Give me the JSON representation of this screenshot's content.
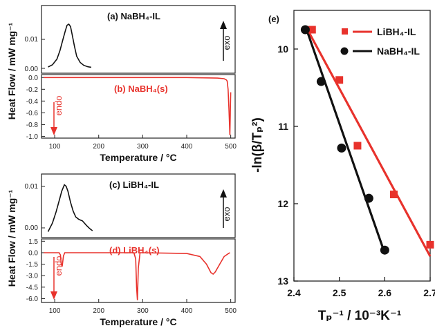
{
  "chart_data": [
    {
      "panel": "a",
      "type": "line",
      "title": "(a) NaBH₄-IL",
      "ylabel": "Heat Flow / mW mg⁻¹",
      "xlim": [
        70,
        510
      ],
      "ylim": [
        -0.002,
        0.022
      ],
      "yticks": [
        "0.01",
        "0.00"
      ],
      "ytick_values": [
        0.01,
        0.0
      ],
      "annotation": "exo",
      "series": [
        {
          "color": "#111111",
          "x": [
            85,
            95,
            105,
            112,
            118,
            124,
            128,
            132,
            136,
            140,
            145,
            150,
            158,
            166,
            175,
            183
          ],
          "y": [
            0.0002,
            0.001,
            0.003,
            0.006,
            0.0095,
            0.013,
            0.015,
            0.0154,
            0.0145,
            0.0115,
            0.0075,
            0.004,
            0.0018,
            0.0008,
            0.0003,
            0.0001
          ]
        }
      ]
    },
    {
      "panel": "b",
      "type": "line",
      "title": "(b) NaBH₄(s)",
      "xlabel": "Temperature / °C",
      "xlim": [
        70,
        510
      ],
      "ylim": [
        -1.03,
        0.05
      ],
      "xticks": [
        "100",
        "200",
        "300",
        "400",
        "500"
      ],
      "xtick_values": [
        100,
        200,
        300,
        400,
        500
      ],
      "yticks": [
        "0.0",
        "-0.2",
        "-0.4",
        "-0.6",
        "-0.8",
        "-1.0"
      ],
      "ytick_values": [
        0.0,
        -0.2,
        -0.4,
        -0.6,
        -0.8,
        -1.0
      ],
      "annotation": "endo",
      "series": [
        {
          "color": "#e8322c",
          "x": [
            75,
            200,
            300,
            400,
            470,
            485,
            490,
            492,
            494,
            496,
            498,
            500
          ],
          "y": [
            0.0,
            0.0,
            0.0,
            0.0,
            -0.01,
            -0.02,
            -0.04,
            -0.06,
            -0.2,
            -0.55,
            -0.98,
            -0.25
          ]
        }
      ]
    },
    {
      "panel": "c",
      "type": "line",
      "title": "(c) LiBH₄-IL",
      "ylabel": "Heat Flow / mW mg⁻¹",
      "xlim": [
        70,
        510
      ],
      "ylim": [
        -0.001,
        0.012
      ],
      "yticks": [
        "0.01",
        "0.00"
      ],
      "ytick_values": [
        0.01,
        0.0
      ],
      "annotation": "exo",
      "series": [
        {
          "color": "#111111",
          "x": [
            85,
            95,
            103,
            110,
            116,
            122,
            126,
            130,
            136,
            142,
            148,
            155,
            163,
            172,
            180,
            186
          ],
          "y": [
            0.0002,
            0.002,
            0.0042,
            0.0065,
            0.0085,
            0.0098,
            0.0095,
            0.0085,
            0.0062,
            0.0044,
            0.0032,
            0.0027,
            0.0024,
            0.0015,
            0.0008,
            0.0004
          ]
        }
      ]
    },
    {
      "panel": "d",
      "type": "line",
      "title": "(d) LiBH₄(s)",
      "xlabel": "Temperature / °C",
      "xlim": [
        70,
        510
      ],
      "ylim": [
        -6.5,
        1.8
      ],
      "xticks": [
        "100",
        "200",
        "300",
        "400",
        "500"
      ],
      "xtick_values": [
        100,
        200,
        300,
        400,
        500
      ],
      "yticks": [
        "1.5",
        "0.0",
        "-1.5",
        "-3.0",
        "-4.5",
        "-6.0"
      ],
      "ytick_values": [
        1.5,
        0.0,
        -1.5,
        -3.0,
        -4.5,
        -6.0
      ],
      "annotation": "endo",
      "series": [
        {
          "color": "#e8322c",
          "x": [
            75,
            110,
            113,
            115,
            117,
            120,
            123,
            200,
            280,
            284,
            286,
            288,
            290,
            294,
            300,
            400,
            430,
            445,
            455,
            460,
            465,
            475,
            485,
            495,
            498
          ],
          "y": [
            0.0,
            0.0,
            -0.3,
            -1.5,
            -1.8,
            -0.4,
            0.0,
            0.0,
            0.0,
            -0.8,
            -4.5,
            -6.2,
            -2.0,
            0.0,
            0.0,
            -0.1,
            -0.5,
            -1.5,
            -2.6,
            -2.8,
            -2.5,
            -1.5,
            -0.5,
            -0.1,
            0.0
          ]
        }
      ]
    },
    {
      "panel": "e",
      "type": "scatter",
      "title": "(e)",
      "xlabel": "Tₚ⁻¹ / 10⁻³K⁻¹",
      "ylabel": "-ln(β/Tₚ²)",
      "xlim": [
        2.4,
        2.7
      ],
      "ylim": [
        13.0,
        9.5
      ],
      "xticks": [
        "2.4",
        "2.5",
        "2.6",
        "2.7"
      ],
      "xtick_values": [
        2.4,
        2.5,
        2.6,
        2.7
      ],
      "yticks": [
        "10",
        "11",
        "12",
        "13"
      ],
      "ytick_values": [
        10,
        11,
        12,
        13
      ],
      "legend_position": "top-right",
      "series": [
        {
          "name": "LiBH₄-IL",
          "color": "#e8322c",
          "marker": "square",
          "x": [
            2.44,
            2.5,
            2.54,
            2.62,
            2.7
          ],
          "y": [
            9.75,
            10.4,
            11.25,
            11.88,
            12.53
          ],
          "fit": [
            [
              2.43,
              9.75
            ],
            [
              2.7,
              12.68
            ]
          ]
        },
        {
          "name": "NaBH₄-IL",
          "color": "#111111",
          "marker": "circle",
          "x": [
            2.425,
            2.46,
            2.505,
            2.565,
            2.6
          ],
          "y": [
            9.75,
            10.42,
            11.28,
            11.93,
            12.6
          ],
          "fit": [
            [
              2.425,
              9.7
            ],
            [
              2.6,
              12.64
            ]
          ]
        }
      ]
    }
  ]
}
